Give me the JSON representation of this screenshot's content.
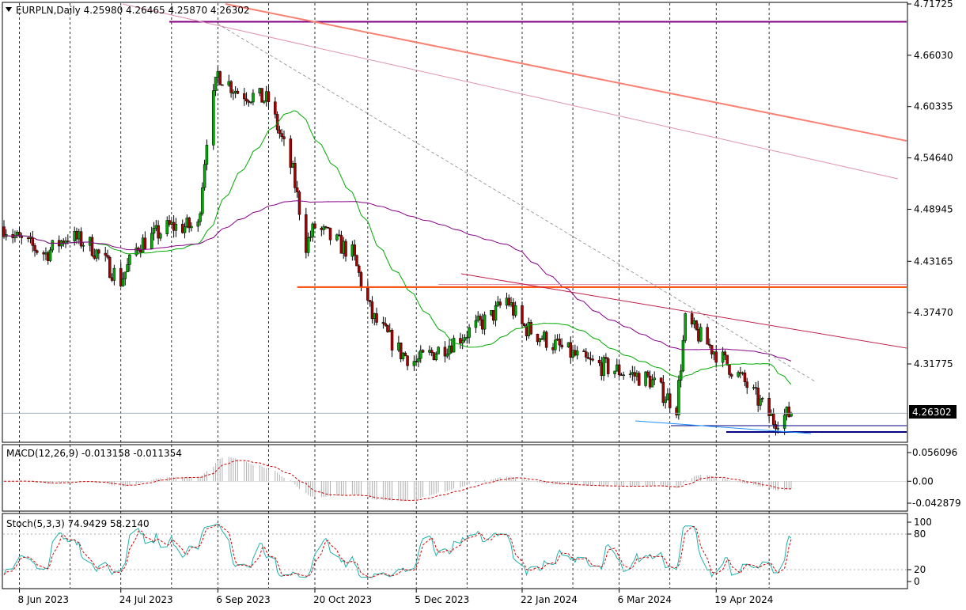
{
  "header": {
    "symbol_line": "EURPLN,Daily  4.25980 4.26465 4.25870 4.26302",
    "current_price_label": "4.26302"
  },
  "price_axis": {
    "ticks": [
      {
        "label": "4.71725",
        "value": 4.71725
      },
      {
        "label": "4.66030",
        "value": 4.6603
      },
      {
        "label": "4.60335",
        "value": 4.60335
      },
      {
        "label": "4.54640",
        "value": 4.5464
      },
      {
        "label": "4.48945",
        "value": 4.48945
      },
      {
        "label": "4.43165",
        "value": 4.43165
      },
      {
        "label": "4.37470",
        "value": 4.3747
      },
      {
        "label": "4.31775",
        "value": 4.31775
      }
    ],
    "current_price": 4.26302
  },
  "macd": {
    "label": "MACD(12,26,9) -0.013158 -0.011354",
    "ticks": [
      {
        "label": "0.056096",
        "value": 0.056096
      },
      {
        "label": "0.00",
        "value": 0
      },
      {
        "label": "-0.042879",
        "value": -0.042879
      }
    ]
  },
  "stoch": {
    "label": "Stoch(5,3,3) 74.9429 58.2140",
    "ticks": [
      {
        "label": "100",
        "value": 100
      },
      {
        "label": "80",
        "value": 80
      },
      {
        "label": "20",
        "value": 20
      },
      {
        "label": "0",
        "value": 0
      }
    ]
  },
  "time_axis": {
    "labels": [
      "8 Jun 2023",
      "24 Jul 2023",
      "6 Sep 2023",
      "20 Oct 2023",
      "5 Dec 2023",
      "22 Jan 2024",
      "6 Mar 2024",
      "19 Apr 2024"
    ]
  },
  "colors": {
    "bull_candle": "#00aa00",
    "bear_candle": "#aa0000",
    "ma_fast": "#00aa00",
    "ma_slow": "#880088",
    "level_purple": "#800080",
    "level_orange": "#ff4500",
    "trend_salmon": "#fa8072",
    "trend_pink": "#e090b0",
    "trend_crimson": "#c0204a",
    "support_blue": "#000080",
    "support_lightblue": "#1e90ff",
    "macd_signal": "#d00000",
    "macd_hist": "#b0b0b0",
    "stoch_main": "#20b2aa",
    "stoch_signal": "#e00000"
  },
  "chart_data": {
    "type": "candlestick",
    "symbol": "EURPLN",
    "timeframe": "Daily",
    "last_bar": {
      "open": 4.2598,
      "high": 4.26465,
      "low": 4.2587,
      "close": 4.26302
    },
    "ylim": [
      4.245,
      4.72
    ],
    "price_path": [
      {
        "date": "2023-06-01",
        "close": 4.47
      },
      {
        "date": "2023-06-08",
        "close": 4.455
      },
      {
        "date": "2023-06-20",
        "close": 4.44
      },
      {
        "date": "2023-06-30",
        "close": 4.46
      },
      {
        "date": "2023-07-10",
        "close": 4.45
      },
      {
        "date": "2023-07-24",
        "close": 4.41
      },
      {
        "date": "2023-08-01",
        "close": 4.45
      },
      {
        "date": "2023-08-15",
        "close": 4.47
      },
      {
        "date": "2023-08-28",
        "close": 4.47
      },
      {
        "date": "2023-09-01",
        "close": 4.57
      },
      {
        "date": "2023-09-06",
        "close": 4.64
      },
      {
        "date": "2023-09-15",
        "close": 4.62
      },
      {
        "date": "2023-09-29",
        "close": 4.61
      },
      {
        "date": "2023-10-10",
        "close": 4.53
      },
      {
        "date": "2023-10-16",
        "close": 4.45
      },
      {
        "date": "2023-10-20",
        "close": 4.47
      },
      {
        "date": "2023-11-06",
        "close": 4.44
      },
      {
        "date": "2023-11-15",
        "close": 4.37
      },
      {
        "date": "2023-11-28",
        "close": 4.33
      },
      {
        "date": "2023-12-05",
        "close": 4.32
      },
      {
        "date": "2023-12-20",
        "close": 4.34
      },
      {
        "date": "2024-01-08",
        "close": 4.37
      },
      {
        "date": "2024-01-15",
        "close": 4.39
      },
      {
        "date": "2024-01-22",
        "close": 4.36
      },
      {
        "date": "2024-02-05",
        "close": 4.34
      },
      {
        "date": "2024-02-20",
        "close": 4.32
      },
      {
        "date": "2024-03-06",
        "close": 4.31
      },
      {
        "date": "2024-03-20",
        "close": 4.3
      },
      {
        "date": "2024-04-01",
        "close": 4.27
      },
      {
        "date": "2024-04-05",
        "close": 4.365
      },
      {
        "date": "2024-04-19",
        "close": 4.33
      },
      {
        "date": "2024-05-01",
        "close": 4.3
      },
      {
        "date": "2024-05-15",
        "close": 4.255
      },
      {
        "date": "2024-05-23",
        "close": 4.263
      }
    ],
    "horizontal_levels": [
      {
        "name": "purple",
        "value": 4.6975
      },
      {
        "name": "orange",
        "value": 4.403
      },
      {
        "name": "pink",
        "value": 4.406
      }
    ]
  }
}
